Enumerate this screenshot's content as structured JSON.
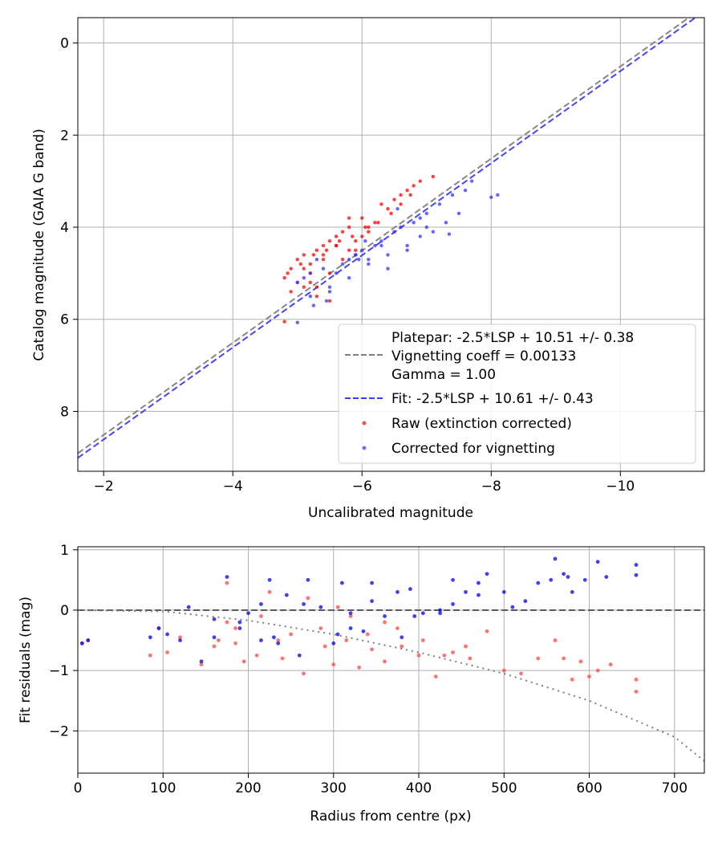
{
  "chart_data": [
    {
      "type": "scatter",
      "xlabel": "Uncalibrated magnitude",
      "ylabel": "Catalog magnitude (GAIA G band)",
      "xlim": [
        -1.6,
        -11.3
      ],
      "ylim": [
        9.3,
        -0.55
      ],
      "xticks": [
        -2,
        -4,
        -6,
        -8,
        -10
      ],
      "xtick_labels": [
        "−2",
        "−4",
        "−6",
        "−8",
        "−10"
      ],
      "yticks": [
        0,
        2,
        4,
        6,
        8
      ],
      "ytick_labels": [
        "0",
        "2",
        "4",
        "6",
        "8"
      ],
      "grid": true,
      "legend_position": "lower-right",
      "series": [
        {
          "name": "Platepar: -2.5*LSP + 10.51 +/- 0.38",
          "type": "line",
          "style": "dashed",
          "color": "#808080",
          "x": [
            -1.6,
            -11.3
          ],
          "y": [
            8.91,
            -0.79
          ]
        },
        {
          "name": "Vignetting coeff = 0.00133",
          "type": "legend-text"
        },
        {
          "name": "Gamma = 1.00",
          "type": "legend-text"
        },
        {
          "name": "Fit: -2.5*LSP + 10.61 +/- 0.43",
          "type": "line",
          "style": "dashed",
          "color": "#3a3aff",
          "x": [
            -1.6,
            -11.3
          ],
          "y": [
            9.01,
            -0.69
          ]
        },
        {
          "name": "Raw (extinction corrected)",
          "type": "scatter",
          "color": "#ff0000",
          "x": [
            -4.8,
            -4.9,
            -5.0,
            -5.1,
            -5.2,
            -5.0,
            -5.3,
            -5.4,
            -5.2,
            -5.5,
            -5.6,
            -5.4,
            -5.7,
            -5.8,
            -5.6,
            -5.9,
            -6.0,
            -5.8,
            -6.1,
            -6.2,
            -5.3,
            -5.5,
            -5.7,
            -6.0,
            -6.3,
            -6.5,
            -6.7,
            -6.9,
            -7.1,
            -6.8,
            -6.6,
            -6.4,
            -5.1,
            -5.2,
            -5.4,
            -5.6,
            -5.9,
            -6.1,
            -4.85,
            -5.05,
            -5.25,
            -5.45,
            -5.65,
            -5.85,
            -6.05,
            -6.25,
            -6.45,
            -6.6,
            -6.75,
            -5.5,
            -5.8,
            -4.9,
            -5.3,
            -5.1,
            -4.8
          ],
          "y": [
            5.1,
            4.9,
            4.7,
            4.6,
            4.8,
            5.2,
            4.5,
            4.4,
            5.0,
            4.3,
            4.2,
            4.6,
            4.1,
            4.0,
            4.4,
            4.3,
            4.2,
            4.5,
            4.0,
            3.9,
            5.3,
            5.0,
            4.7,
            3.8,
            3.5,
            3.4,
            3.2,
            3.0,
            2.9,
            3.1,
            3.3,
            3.6,
            4.9,
            5.2,
            4.7,
            4.4,
            4.5,
            4.1,
            5.0,
            4.8,
            4.6,
            4.5,
            4.3,
            4.2,
            4.0,
            3.9,
            3.7,
            3.5,
            3.3,
            5.6,
            3.8,
            5.4,
            5.5,
            5.3,
            6.05
          ],
          "size": 2.2
        },
        {
          "name": "Corrected for vignetting",
          "type": "scatter",
          "color": "#3333ff",
          "x": [
            -5.0,
            -5.2,
            -5.4,
            -5.5,
            -5.7,
            -5.9,
            -6.0,
            -6.2,
            -6.3,
            -6.5,
            -6.6,
            -6.8,
            -7.0,
            -7.2,
            -7.4,
            -7.6,
            -8.0,
            -8.1,
            -5.1,
            -5.3,
            -5.6,
            -5.8,
            -6.1,
            -6.4,
            -6.7,
            -6.9,
            -7.1,
            -7.3,
            -7.5,
            -7.7,
            -5.2,
            -5.5,
            -5.8,
            -6.1,
            -6.4,
            -6.7,
            -7.0,
            -5.25,
            -5.9,
            -6.3,
            -5.0,
            -6.9,
            -7.35,
            -5.45,
            -6.05,
            -6.55,
            -5.95
          ],
          "y": [
            5.2,
            5.0,
            4.9,
            5.3,
            4.8,
            4.6,
            4.5,
            4.4,
            4.3,
            4.1,
            4.0,
            3.9,
            3.7,
            3.5,
            3.3,
            3.2,
            3.35,
            3.3,
            5.1,
            4.7,
            5.0,
            4.7,
            4.8,
            4.6,
            4.5,
            4.2,
            4.1,
            3.9,
            3.7,
            3.0,
            5.5,
            5.4,
            5.1,
            4.7,
            4.9,
            4.4,
            4.0,
            5.7,
            4.6,
            4.4,
            6.07,
            3.8,
            4.15,
            5.6,
            4.3,
            3.6,
            4.7
          ],
          "size": 2.2
        }
      ]
    },
    {
      "type": "scatter",
      "xlabel": "Radius from centre (px)",
      "ylabel": "Fit residuals (mag)",
      "xlim": [
        0,
        735
      ],
      "ylim": [
        -2.7,
        1.05
      ],
      "xticks": [
        0,
        100,
        200,
        300,
        400,
        500,
        600,
        700
      ],
      "xtick_labels": [
        "0",
        "100",
        "200",
        "300",
        "400",
        "500",
        "600",
        "700"
      ],
      "yticks": [
        1,
        0,
        -1,
        -2
      ],
      "ytick_labels": [
        "1",
        "0",
        "−1",
        "−2"
      ],
      "grid": true,
      "series": [
        {
          "name": "zero-line",
          "type": "line",
          "style": "dashed",
          "color": "#555555",
          "x": [
            0,
            735
          ],
          "y": [
            0,
            0
          ]
        },
        {
          "name": "vignetting-model",
          "type": "line",
          "style": "dotted",
          "color": "#777777",
          "x": [
            0,
            100,
            200,
            300,
            400,
            500,
            600,
            700,
            735
          ],
          "y": [
            0,
            -0.02,
            -0.17,
            -0.4,
            -0.7,
            -1.05,
            -1.5,
            -2.1,
            -2.5
          ]
        },
        {
          "name": "raw-residuals",
          "type": "scatter",
          "color": "#ff4444",
          "x": [
            5,
            12,
            85,
            95,
            105,
            120,
            145,
            165,
            175,
            185,
            195,
            210,
            225,
            240,
            265,
            285,
            300,
            315,
            330,
            345,
            360,
            380,
            400,
            420,
            440,
            460,
            480,
            500,
            520,
            540,
            560,
            570,
            580,
            590,
            600,
            610,
            625,
            655,
            655,
            185,
            215,
            250,
            290,
            340,
            375,
            405,
            430,
            455,
            175,
            305,
            320,
            360,
            235,
            270,
            160
          ],
          "y": [
            -0.55,
            -0.5,
            -0.75,
            -0.3,
            -0.7,
            -0.45,
            -0.9,
            -0.5,
            0.45,
            -0.55,
            -0.85,
            -0.75,
            0.3,
            -0.8,
            -1.05,
            -0.3,
            -0.9,
            -0.5,
            -0.95,
            -0.65,
            -0.85,
            -0.6,
            -0.75,
            -1.1,
            -0.7,
            -0.8,
            -0.35,
            -1.0,
            -1.05,
            -0.8,
            -0.5,
            -0.8,
            -1.15,
            -0.85,
            -1.1,
            -1.0,
            -0.9,
            -1.15,
            -1.35,
            -0.3,
            -0.1,
            -0.4,
            -0.6,
            -0.4,
            -0.3,
            -0.5,
            -0.75,
            -0.6,
            -0.2,
            0.05,
            -0.1,
            -0.2,
            -0.5,
            0.2,
            -0.6
          ],
          "size": 2.4
        },
        {
          "name": "corrected-residuals",
          "type": "scatter",
          "color": "#0000ee",
          "x": [
            5,
            12,
            85,
            95,
            105,
            120,
            130,
            145,
            160,
            175,
            190,
            200,
            215,
            225,
            235,
            245,
            260,
            270,
            285,
            300,
            310,
            320,
            335,
            345,
            360,
            375,
            390,
            405,
            425,
            440,
            455,
            470,
            480,
            500,
            510,
            525,
            540,
            555,
            560,
            570,
            575,
            580,
            595,
            610,
            620,
            655,
            655,
            215,
            305,
            320,
            380,
            440,
            470,
            265,
            230,
            160,
            190,
            345,
            395,
            425
          ],
          "y": [
            -0.55,
            -0.5,
            -0.45,
            -0.3,
            -0.4,
            -0.5,
            0.05,
            -0.85,
            -0.45,
            0.55,
            -0.3,
            -0.05,
            0.1,
            0.5,
            -0.55,
            0.25,
            -0.75,
            0.5,
            0.05,
            -0.55,
            0.45,
            -0.3,
            -0.35,
            0.45,
            -0.1,
            0.3,
            0.35,
            -0.05,
            -0.05,
            0.5,
            0.3,
            0.45,
            0.6,
            0.3,
            0.05,
            0.15,
            0.45,
            0.5,
            0.85,
            0.6,
            0.55,
            0.3,
            0.5,
            0.8,
            0.55,
            0.75,
            0.58,
            -0.5,
            -0.4,
            -0.05,
            -0.45,
            0.1,
            0.25,
            0.1,
            -0.45,
            -0.15,
            -0.2,
            0.15,
            -0.1,
            0.0
          ],
          "size": 2.4
        }
      ]
    }
  ]
}
